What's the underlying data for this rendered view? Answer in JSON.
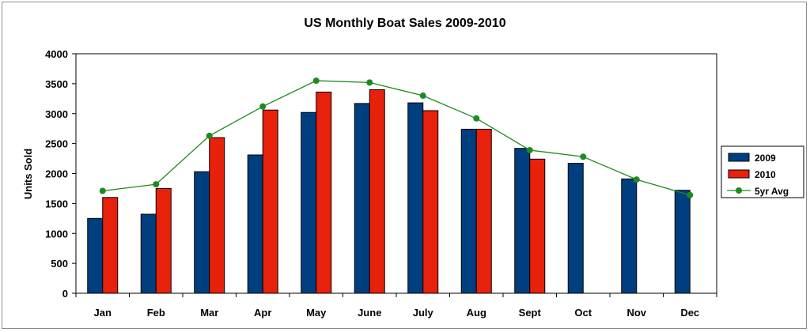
{
  "chart_data": {
    "type": "bar",
    "title": "US Monthly Boat Sales 2009-2010",
    "xlabel": "",
    "ylabel": "Units Sold",
    "ylim": [
      0,
      4000
    ],
    "yticks": [
      0,
      500,
      1000,
      1500,
      2000,
      2500,
      3000,
      3500,
      4000
    ],
    "categories": [
      "Jan",
      "Feb",
      "Mar",
      "Apr",
      "May",
      "June",
      "July",
      "Aug",
      "Sept",
      "Oct",
      "Nov",
      "Dec"
    ],
    "series": [
      {
        "name": "2009",
        "kind": "bar",
        "color": "#003f7f",
        "values": [
          1250,
          1320,
          2030,
          2310,
          3020,
          3170,
          3180,
          2740,
          2420,
          2170,
          1910,
          1720
        ]
      },
      {
        "name": "2010",
        "kind": "bar",
        "color": "#e8210b",
        "values": [
          1600,
          1750,
          2600,
          3060,
          3360,
          3400,
          3050,
          2740,
          2240,
          null,
          null,
          null
        ]
      },
      {
        "name": "5yr Avg",
        "kind": "line",
        "color": "#1f8a1f",
        "values": [
          1710,
          1820,
          2630,
          3120,
          3550,
          3520,
          3300,
          2920,
          2390,
          2280,
          1900,
          1640
        ]
      }
    ],
    "grid": false,
    "legend_position": "right"
  }
}
